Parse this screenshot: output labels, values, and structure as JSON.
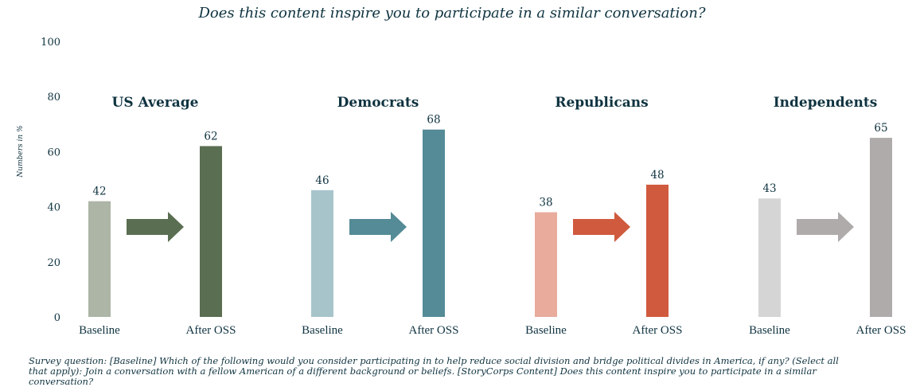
{
  "chart_data": {
    "type": "bar",
    "title": "Does this content inspire you to participate in a similar conversation?",
    "ylabel": "Numbers in %",
    "ylim": [
      0,
      100
    ],
    "yticks": [
      0,
      20,
      40,
      60,
      80,
      100
    ],
    "groups": [
      {
        "name": "US Average",
        "baseline": 42,
        "after": 62,
        "colors": {
          "baseline": "#adb5a6",
          "after": "#5a6e51",
          "arrow": "#5a6e51"
        }
      },
      {
        "name": "Democrats",
        "baseline": 46,
        "after": 68,
        "colors": {
          "baseline": "#a7c4cb",
          "after": "#548b97",
          "arrow": "#548b97"
        }
      },
      {
        "name": "Republicans",
        "baseline": 38,
        "after": 48,
        "colors": {
          "baseline": "#e8ab9c",
          "after": "#d05a3e",
          "arrow": "#d05a3e"
        }
      },
      {
        "name": "Independents",
        "baseline": 43,
        "after": 65,
        "colors": {
          "baseline": "#d5d5d5",
          "after": "#afabaa",
          "arrow": "#afabaa"
        }
      }
    ],
    "bar_labels": {
      "baseline": "Baseline",
      "after": "After OSS"
    }
  },
  "footnote": "Survey question: [Baseline] Which of the following would you consider participating in to help reduce social division and bridge political divides in America, if any? (Select all that apply): Join a conversation with a fellow American of a different background or beliefs. [StoryCorps Content] Does this content inspire you to participate in a similar conversation?"
}
